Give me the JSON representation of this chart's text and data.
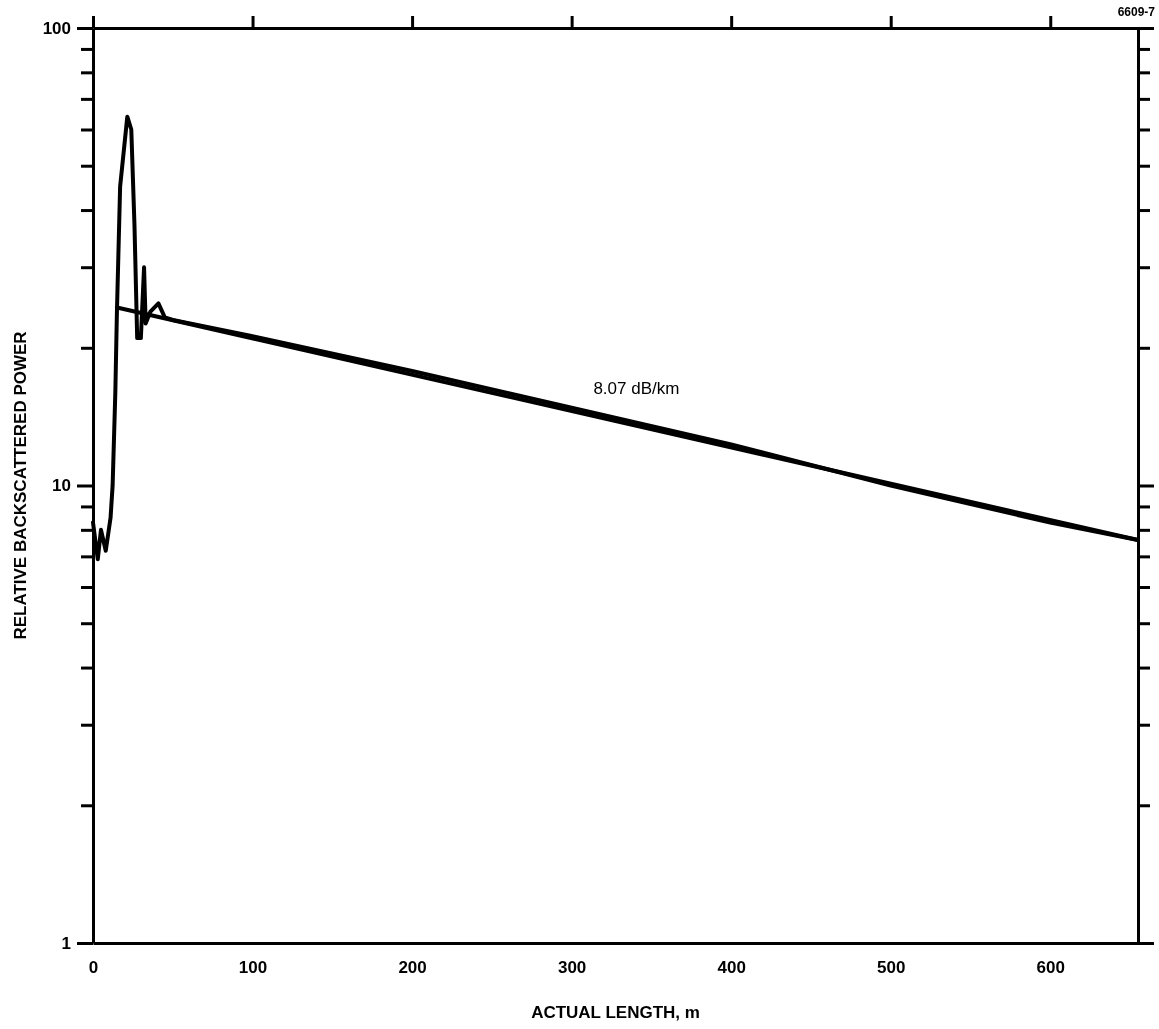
{
  "chart_data": {
    "type": "line",
    "xlabel": "ACTUAL LENGTH, m",
    "ylabel": "RELATIVE BACKSCATTERED POWER",
    "log": "y",
    "xlim": [
      0,
      655
    ],
    "ylim": [
      1,
      100
    ],
    "xticks": [
      0,
      100,
      200,
      300,
      400,
      500,
      600
    ],
    "yticks": [
      1,
      {
        "value": 2,
        "label": null
      },
      {
        "value": 3,
        "label": null
      },
      {
        "value": 4,
        "label": null
      },
      {
        "value": 5,
        "label": null
      },
      {
        "value": 6,
        "label": null
      },
      {
        "value": 7,
        "label": null
      },
      {
        "value": 8,
        "label": null
      },
      {
        "value": 9,
        "label": null
      },
      10,
      {
        "value": 20,
        "label": null
      },
      {
        "value": 30,
        "label": null
      },
      {
        "value": 40,
        "label": null
      },
      {
        "value": 50,
        "label": null
      },
      {
        "value": 60,
        "label": null
      },
      {
        "value": 70,
        "label": null
      },
      {
        "value": 80,
        "label": null
      },
      {
        "value": 90,
        "label": null
      },
      100
    ],
    "marker": "none",
    "line_style": "solid",
    "series": [
      {
        "color": "#000000",
        "x": [
          0,
          3,
          5,
          8,
          11,
          12.3,
          14,
          15,
          17,
          21.5,
          24,
          26,
          27.7,
          30,
          32,
          33,
          36,
          41,
          45,
          50,
          100,
          200,
          300,
          400,
          500,
          600,
          655
        ],
        "values": [
          8.3,
          6.9,
          8,
          7.2,
          8.5,
          10,
          16,
          24,
          45,
          64,
          60,
          37,
          21,
          21,
          30,
          22.6,
          24,
          25,
          23.3,
          23,
          21.2,
          17.8,
          14.8,
          12.3,
          10,
          8.3,
          7.6
        ]
      },
      {
        "color": "#000000",
        "x": [
          15,
          655
        ],
        "values": [
          24.5,
          7.6
        ]
      }
    ],
    "annotations": [
      "8.07 dB/km",
      "6609-7"
    ]
  }
}
